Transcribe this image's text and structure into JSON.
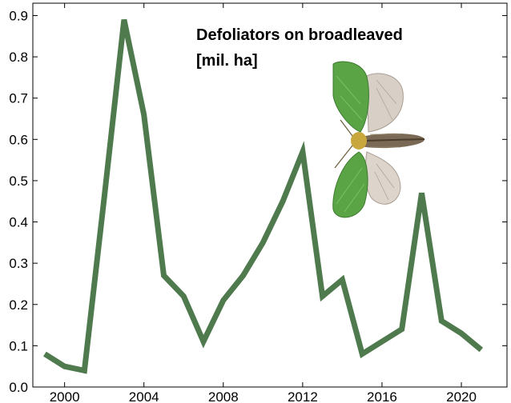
{
  "chart_data": {
    "type": "line",
    "title_lines": [
      "Defoliators on broadleaved",
      "[mil. ha]"
    ],
    "xlabel": "",
    "ylabel": "",
    "xlim": [
      1998.4,
      2022.3
    ],
    "ylim": [
      0.0,
      0.93
    ],
    "xticks": [
      2000,
      2004,
      2008,
      2012,
      2016,
      2020
    ],
    "yticks": [
      0.0,
      0.1,
      0.2,
      0.3,
      0.4,
      0.5,
      0.6,
      0.7,
      0.8,
      0.9
    ],
    "ytick_labels": [
      "0.0",
      "0.1",
      "0.2",
      "0.3",
      "0.4",
      "0.5",
      "0.6",
      "0.7",
      "0.8",
      "0.9"
    ],
    "grid": false,
    "line_color": "#4e7a4e",
    "series": [
      {
        "x": [
          1999,
          2000,
          2001,
          2002,
          2003,
          2004,
          2005,
          2006,
          2007,
          2008,
          2009,
          2010,
          2011,
          2012,
          2013,
          2014,
          2015,
          2016,
          2017,
          2018,
          2019,
          2020,
          2021
        ],
        "values": [
          0.08,
          0.05,
          0.04,
          0.46,
          0.89,
          0.66,
          0.27,
          0.22,
          0.11,
          0.21,
          0.27,
          0.35,
          0.45,
          0.57,
          0.22,
          0.26,
          0.08,
          0.11,
          0.14,
          0.47,
          0.16,
          0.13,
          0.09
        ]
      }
    ],
    "inset_image": "green-moth-icon"
  }
}
